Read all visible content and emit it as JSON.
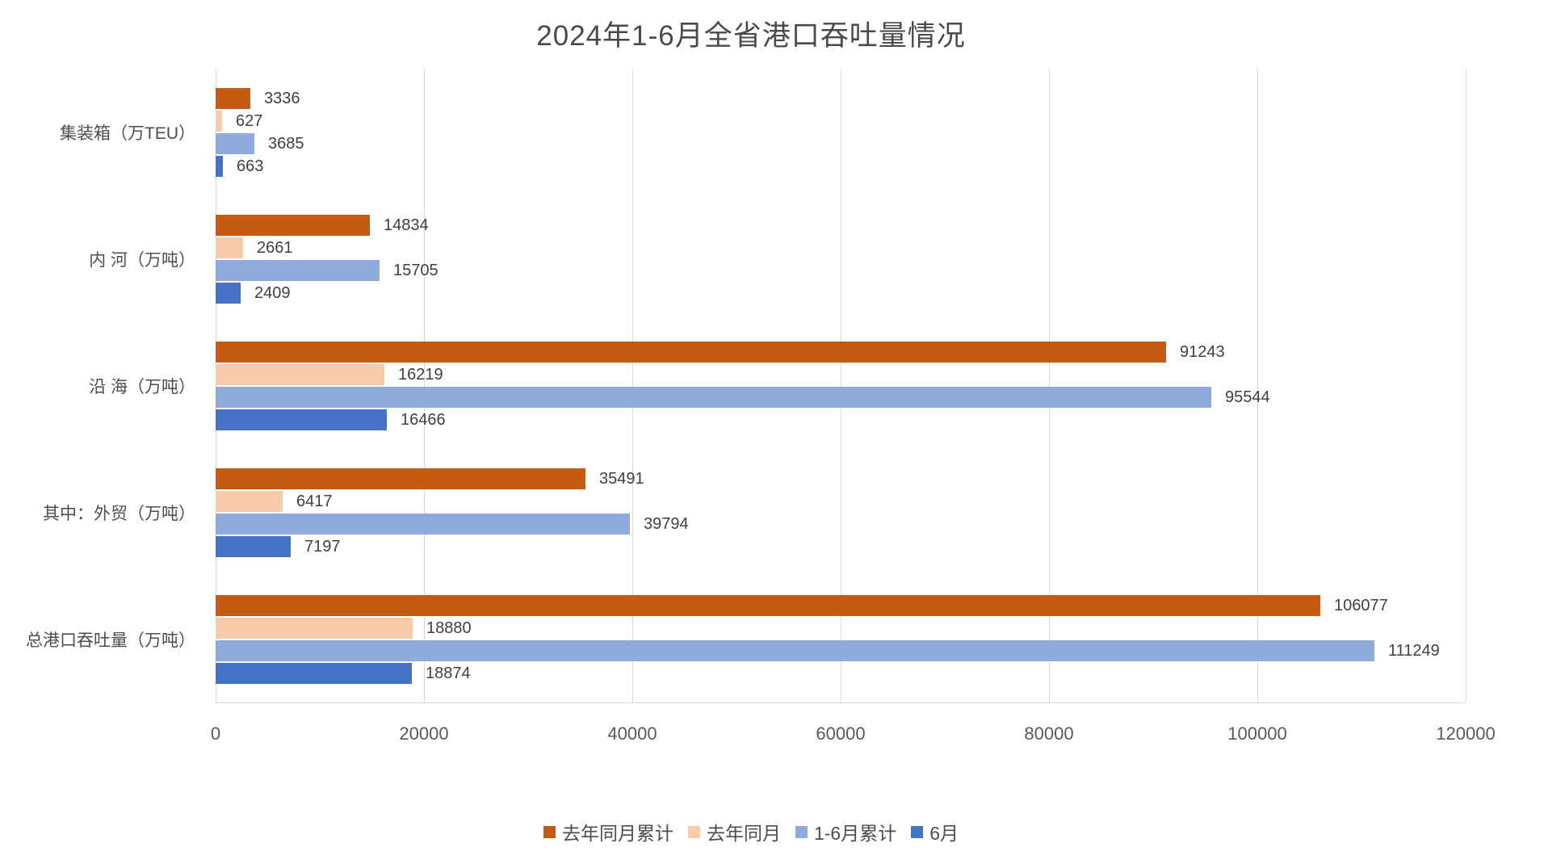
{
  "chart_data": {
    "type": "bar",
    "orientation": "horizontal",
    "title": "2024年1-6月全省港口吞吐量情况",
    "categories": [
      "集装箱（万TEU）",
      "内 河（万吨）",
      "沿 海（万吨）",
      "其中：外贸（万吨）",
      "总港口吞吐量（万吨）"
    ],
    "series": [
      {
        "name": "去年同月累计",
        "color": "#C55A11",
        "values": [
          3336,
          14834,
          91243,
          35491,
          106077
        ]
      },
      {
        "name": "去年同月",
        "color": "#F8CBAD",
        "values": [
          627,
          2661,
          16219,
          6417,
          18880
        ]
      },
      {
        "name": "1-6月累计",
        "color": "#8FAADC",
        "values": [
          3685,
          15705,
          95544,
          39794,
          111249
        ]
      },
      {
        "name": "6月",
        "color": "#4472C4",
        "values": [
          663,
          2409,
          16466,
          7197,
          18874
        ]
      }
    ],
    "x_axis": {
      "min": 0,
      "max": 120000,
      "tick_interval": 20000,
      "ticks": [
        "0",
        "20000",
        "40000",
        "60000",
        "80000",
        "100000",
        "120000"
      ]
    },
    "grid": "vertical",
    "value_labels": "outside-end",
    "legend_position": "bottom",
    "colors": {
      "gridline": "#d9d9d9",
      "title_text": "#4a4a4a",
      "label_text": "#404040",
      "axis_text": "#595959"
    }
  }
}
